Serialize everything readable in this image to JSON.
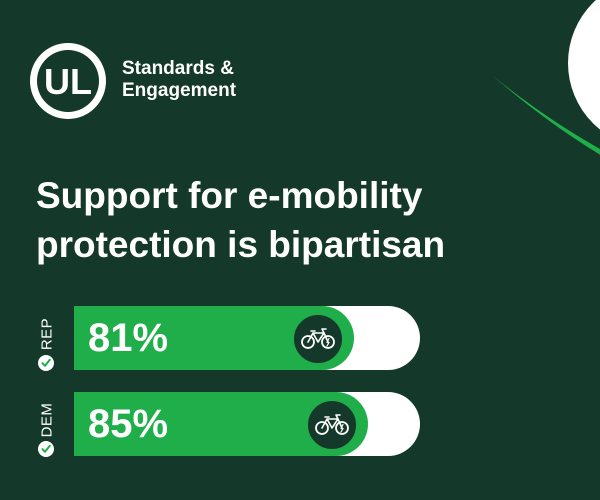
{
  "brand": {
    "logo_text": "UL",
    "name_line1": "Standards &",
    "name_line2": "Engagement"
  },
  "colors": {
    "background": "#14392a",
    "accent_green": "#1fae4a",
    "white": "#ffffff"
  },
  "chart_data": {
    "type": "bar",
    "orientation": "horizontal",
    "title": [
      "Support for e-mobility",
      "protection is bipartisan"
    ],
    "categories": [
      "REP",
      "DEM"
    ],
    "values": [
      81,
      85
    ],
    "value_labels": [
      "81%",
      "85%"
    ],
    "unit": "%",
    "xlim": [
      0,
      100
    ],
    "icons": [
      "e-bike-icon",
      "checkmark-icon"
    ]
  }
}
